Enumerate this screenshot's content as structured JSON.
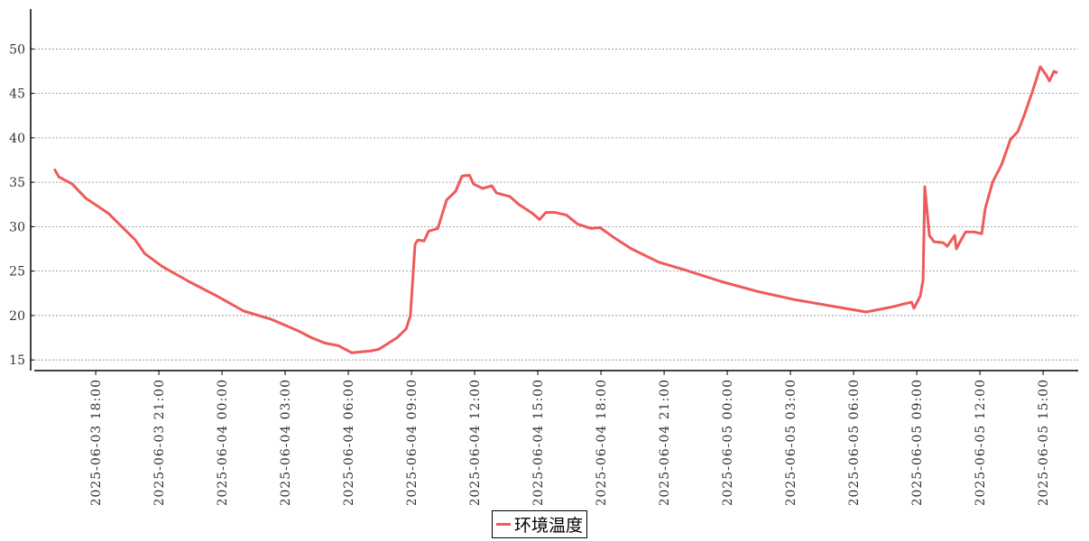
{
  "chart_data": {
    "type": "line",
    "x": [
      "2025-06-03 16:02",
      "2025-06-03 16:15",
      "2025-06-03 16:53",
      "2025-06-03 17:32",
      "2025-06-03 18:36",
      "2025-06-03 19:53",
      "2025-06-03 20:19",
      "2025-06-03 21:10",
      "2025-06-03 22:27",
      "2025-06-03 23:45",
      "2025-06-04 01:02",
      "2025-06-04 02:19",
      "2025-06-04 03:36",
      "2025-06-04 04:15",
      "2025-06-04 04:53",
      "2025-06-04 05:32",
      "2025-06-04 06:10",
      "2025-06-04 07:02",
      "2025-06-04 07:27",
      "2025-06-04 08:19",
      "2025-06-04 08:45",
      "2025-06-04 08:57",
      "2025-06-04 09:10",
      "2025-06-04 09:18",
      "2025-06-04 09:36",
      "2025-06-04 09:49",
      "2025-06-04 10:15",
      "2025-06-04 10:40",
      "2025-06-04 11:06",
      "2025-06-04 11:24",
      "2025-06-04 11:45",
      "2025-06-04 11:57",
      "2025-06-04 12:23",
      "2025-06-04 12:49",
      "2025-06-04 13:02",
      "2025-06-04 13:40",
      "2025-06-04 14:06",
      "2025-06-04 14:45",
      "2025-06-04 15:05",
      "2025-06-04 15:23",
      "2025-06-04 15:49",
      "2025-06-04 16:22",
      "2025-06-04 16:53",
      "2025-06-04 17:32",
      "2025-06-04 17:57",
      "2025-06-04 18:36",
      "2025-06-04 19:27",
      "2025-06-04 20:45",
      "2025-06-04 22:02",
      "2025-06-04 23:45",
      "2025-06-05 01:27",
      "2025-06-05 03:10",
      "2025-06-05 04:53",
      "2025-06-05 06:36",
      "2025-06-05 07:53",
      "2025-06-05 08:45",
      "2025-06-05 08:52",
      "2025-06-05 09:10",
      "2025-06-05 09:18",
      "2025-06-05 09:23",
      "2025-06-05 09:36",
      "2025-06-05 09:49",
      "2025-06-05 10:15",
      "2025-06-05 10:27",
      "2025-06-05 10:48",
      "2025-06-05 10:53",
      "2025-06-05 11:06",
      "2025-06-05 11:19",
      "2025-06-05 11:45",
      "2025-06-05 12:05",
      "2025-06-05 12:15",
      "2025-06-05 12:36",
      "2025-06-05 13:02",
      "2025-06-05 13:27",
      "2025-06-05 13:48",
      "2025-06-05 14:06",
      "2025-06-05 14:32",
      "2025-06-05 14:52",
      "2025-06-05 15:10",
      "2025-06-05 15:18",
      "2025-06-05 15:31",
      "2025-06-05 15:41"
    ],
    "series": [
      {
        "name": "环境温度",
        "color": "#ef5a5a",
        "values": [
          36.5,
          35.6,
          34.8,
          33.2,
          31.5,
          28.5,
          27,
          25.5,
          23.8,
          22.2,
          20.5,
          19.6,
          18.3,
          17.5,
          16.9,
          16.6,
          15.8,
          16,
          16.2,
          17.5,
          18.5,
          20,
          28,
          28.5,
          28.4,
          29.5,
          29.8,
          33,
          34,
          35.7,
          35.8,
          34.8,
          34.3,
          34.6,
          33.8,
          33.4,
          32.5,
          31.5,
          30.8,
          31.6,
          31.6,
          31.3,
          30.3,
          29.8,
          29.9,
          28.8,
          27.5,
          26,
          25.1,
          23.8,
          22.7,
          21.8,
          21.1,
          20.4,
          21,
          21.5,
          20.8,
          22.2,
          24,
          34.5,
          29,
          28.3,
          28.2,
          27.8,
          29,
          27.5,
          28.5,
          29.4,
          29.4,
          29.2,
          32,
          35,
          37,
          39.8,
          40.7,
          42.5,
          45.5,
          48,
          47,
          46.4,
          47.5,
          47.3
        ]
      }
    ],
    "xlim": [
      "2025-06-03 15:05",
      "2025-06-05 16:40"
    ],
    "xticks": [
      "2025-06-03 18:00",
      "2025-06-03 21:00",
      "2025-06-04 00:00",
      "2025-06-04 03:00",
      "2025-06-04 06:00",
      "2025-06-04 09:00",
      "2025-06-04 12:00",
      "2025-06-04 15:00",
      "2025-06-04 18:00",
      "2025-06-04 21:00",
      "2025-06-05 00:00",
      "2025-06-05 03:00",
      "2025-06-05 06:00",
      "2025-06-05 09:00",
      "2025-06-05 12:00",
      "2025-06-05 15:00"
    ],
    "ylim": [
      13.8,
      54.5
    ],
    "yticks": [
      15,
      20,
      25,
      30,
      35,
      40,
      45,
      50
    ],
    "grid": true
  }
}
